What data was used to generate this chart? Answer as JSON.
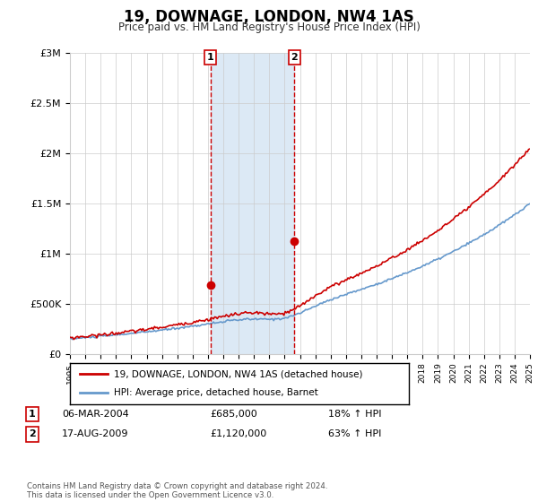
{
  "title": "19, DOWNAGE, LONDON, NW4 1AS",
  "subtitle": "Price paid vs. HM Land Registry's House Price Index (HPI)",
  "legend_line1": "19, DOWNAGE, LONDON, NW4 1AS (detached house)",
  "legend_line2": "HPI: Average price, detached house, Barnet",
  "transaction1_date": "06-MAR-2004",
  "transaction1_price": "£685,000",
  "transaction1_hpi": "18% ↑ HPI",
  "transaction2_date": "17-AUG-2009",
  "transaction2_price": "£1,120,000",
  "transaction2_hpi": "63% ↑ HPI",
  "footer": "Contains HM Land Registry data © Crown copyright and database right 2024.\nThis data is licensed under the Open Government Licence v3.0.",
  "red_color": "#cc0000",
  "blue_color": "#6699cc",
  "highlight_color": "#dce9f5",
  "box_color": "#cc0000",
  "yticks": [
    0,
    500000,
    1000000,
    1500000,
    2000000,
    2500000,
    3000000
  ],
  "ylabels": [
    "£0",
    "£500K",
    "£1M",
    "£1.5M",
    "£2M",
    "£2.5M",
    "£3M"
  ],
  "year_start": 1995,
  "year_end": 2025,
  "transaction1_year": 2004.17,
  "transaction2_year": 2009.63,
  "t1_price": 685000,
  "t2_price": 1120000
}
